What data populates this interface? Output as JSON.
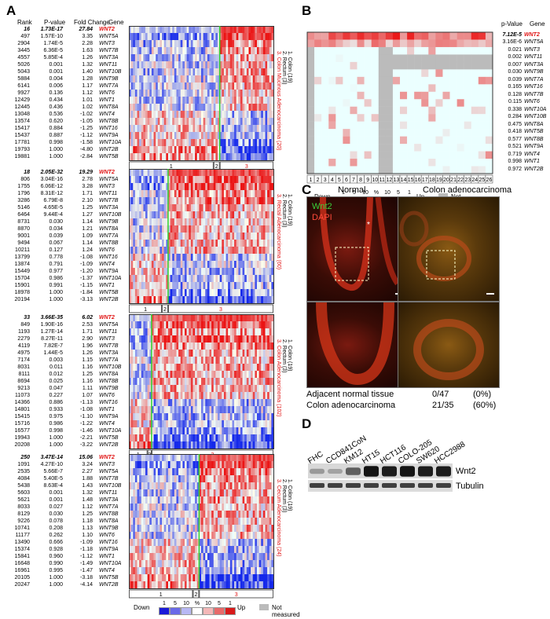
{
  "panels": {
    "A": "A",
    "B": "B",
    "C": "C",
    "D": "D"
  },
  "panelA": {
    "headers": {
      "rank": "Rank",
      "pvalue": "P-value",
      "fold": "Fold Change",
      "gene": "Gene"
    },
    "blocks": [
      {
        "rows": [
          [
            "16",
            "1.73E-17",
            "27.84",
            "WNT2"
          ],
          [
            "497",
            "1.57E-10",
            "3.35",
            "WNT5A"
          ],
          [
            "2904",
            "1.74E-5",
            "2.28",
            "WNT3"
          ],
          [
            "3445",
            "6.36E-5",
            "1.63",
            "WNT7B"
          ],
          [
            "4557",
            "5.85E-4",
            "1.26",
            "WNT3A"
          ],
          [
            "5026",
            "0.001",
            "1.32",
            "WNT11"
          ],
          [
            "5043",
            "0.001",
            "1.40",
            "WNT10B"
          ],
          [
            "5884",
            "0.004",
            "1.28",
            "WNT9B"
          ],
          [
            "6141",
            "0.006",
            "1.17",
            "WNT7A"
          ],
          [
            "9927",
            "0.136",
            "1.12",
            "WNT6"
          ],
          [
            "12429",
            "0.434",
            "1.01",
            "WNT1"
          ],
          [
            "12445",
            "0.436",
            "1.02",
            "WNT8A"
          ],
          [
            "13048",
            "0.536",
            "-1.02",
            "WNT4"
          ],
          [
            "13574",
            "0.620",
            "-1.05",
            "WNT8B"
          ],
          [
            "15417",
            "0.884",
            "-1.25",
            "WNT16"
          ],
          [
            "15437",
            "0.887",
            "-1.12",
            "WNT9A"
          ],
          [
            "17781",
            "0.998",
            "-1.58",
            "WNT10A"
          ],
          [
            "19793",
            "1.000",
            "-4.80",
            "WNT2B"
          ],
          [
            "19881",
            "1.000",
            "-2.84",
            "WNT5B"
          ]
        ],
        "legend": [
          "1. Colon (19)",
          "2. Rectum (3)",
          "3. Colon Mucinous Adenocarcinoma (20)"
        ],
        "groups": [
          "1",
          "2",
          "3"
        ],
        "split1": 0.58,
        "split2": 0.63
      },
      {
        "rows": [
          [
            "18",
            "2.05E-32",
            "19.29",
            "WNT2"
          ],
          [
            "806",
            "3.04E-16",
            "2.78",
            "WNT5A"
          ],
          [
            "1755",
            "6.06E-12",
            "3.28",
            "WNT3"
          ],
          [
            "1796",
            "8.31E-12",
            "1.71",
            "WNT11"
          ],
          [
            "3286",
            "6.79E-8",
            "2.10",
            "WNT7B"
          ],
          [
            "5146",
            "4.65E-5",
            "1.25",
            "WNT3A"
          ],
          [
            "6464",
            "9.44E-4",
            "1.27",
            "WNT10B"
          ],
          [
            "8731",
            "0.030",
            "1.14",
            "WNT9B"
          ],
          [
            "8870",
            "0.034",
            "1.21",
            "WNT8A"
          ],
          [
            "9001",
            "0.039",
            "1.09",
            "WNT7A"
          ],
          [
            "9494",
            "0.067",
            "1.14",
            "WNT8B"
          ],
          [
            "10211",
            "0.127",
            "1.24",
            "WNT6"
          ],
          [
            "13799",
            "0.778",
            "-1.08",
            "WNT16"
          ],
          [
            "13874",
            "0.791",
            "-1.09",
            "WNT4"
          ],
          [
            "15449",
            "0.977",
            "-1.20",
            "WNT9A"
          ],
          [
            "15704",
            "0.986",
            "-1.37",
            "WNT10A"
          ],
          [
            "15901",
            "0.991",
            "-1.15",
            "WNT1"
          ],
          [
            "18978",
            "1.000",
            "-1.84",
            "WNT5B"
          ],
          [
            "20194",
            "1.000",
            "-3.13",
            "WNT2B"
          ]
        ],
        "legend": [
          "1. Colon (19)",
          "2. Rectum (3)",
          "3. Rectal Adenocarcinoma (60)"
        ],
        "groups": [
          "1",
          "2",
          "3"
        ],
        "split1": 0.23,
        "split2": 0.265
      },
      {
        "rows": [
          [
            "33",
            "3.66E-35",
            "6.02",
            "WNT2"
          ],
          [
            "849",
            "1.90E-16",
            "2.53",
            "WNT5A"
          ],
          [
            "1193",
            "1.27E-14",
            "1.71",
            "WNT11"
          ],
          [
            "2279",
            "8.27E-11",
            "2.90",
            "WNT3"
          ],
          [
            "4119",
            "7.82E-7",
            "1.96",
            "WNT7B"
          ],
          [
            "4975",
            "1.44E-5",
            "1.26",
            "WNT3A"
          ],
          [
            "7174",
            "0.003",
            "1.15",
            "WNT7A"
          ],
          [
            "8031",
            "0.011",
            "1.16",
            "WNT10B"
          ],
          [
            "8111",
            "0.012",
            "1.25",
            "WNT8A"
          ],
          [
            "8694",
            "0.025",
            "1.16",
            "WNT8B"
          ],
          [
            "9213",
            "0.047",
            "1.11",
            "WNT9B"
          ],
          [
            "11073",
            "0.227",
            "1.07",
            "WNT6"
          ],
          [
            "14366",
            "0.886",
            "-1.13",
            "WNT16"
          ],
          [
            "14801",
            "0.933",
            "-1.08",
            "WNT1"
          ],
          [
            "15415",
            "0.975",
            "-1.10",
            "WNT9A"
          ],
          [
            "15716",
            "0.986",
            "-1.22",
            "WNT4"
          ],
          [
            "16577",
            "0.998",
            "-1.46",
            "WNT10A"
          ],
          [
            "19943",
            "1.000",
            "-2.21",
            "WNT5B"
          ],
          [
            "20208",
            "1.000",
            "-3.22",
            "WNT2B"
          ]
        ],
        "legend": [
          "1. Colon (19)",
          "2. Rectum (3)",
          "3. Colon Adenocarcinoma (102)"
        ],
        "groups": [
          "1",
          "2",
          "3"
        ],
        "split1": 0.13,
        "split2": 0.15
      },
      {
        "rows": [
          [
            "250",
            "3.47E-14",
            "15.06",
            "WNT2"
          ],
          [
            "1091",
            "4.27E-10",
            "3.24",
            "WNT3"
          ],
          [
            "2535",
            "5.66E-7",
            "2.27",
            "WNT5A"
          ],
          [
            "4084",
            "5.40E-5",
            "1.88",
            "WNT7B"
          ],
          [
            "5438",
            "8.63E-4",
            "1.43",
            "WNT10B"
          ],
          [
            "5603",
            "0.001",
            "1.32",
            "WNT11"
          ],
          [
            "5621",
            "0.001",
            "1.48",
            "WNT3A"
          ],
          [
            "8033",
            "0.027",
            "1.12",
            "WNT7A"
          ],
          [
            "8129",
            "0.030",
            "1.25",
            "WNT8B"
          ],
          [
            "9226",
            "0.078",
            "1.18",
            "WNT8A"
          ],
          [
            "10741",
            "0.208",
            "1.13",
            "WNT9B"
          ],
          [
            "11177",
            "0.262",
            "1.10",
            "WNT6"
          ],
          [
            "13490",
            "0.666",
            "-1.09",
            "WNT16"
          ],
          [
            "15374",
            "0.928",
            "-1.18",
            "WNT9A"
          ],
          [
            "15841",
            "0.960",
            "-1.12",
            "WNT1"
          ],
          [
            "16648",
            "0.990",
            "-1.49",
            "WNT10A"
          ],
          [
            "16961",
            "0.995",
            "-1.47",
            "WNT4"
          ],
          [
            "20105",
            "1.000",
            "-3.18",
            "WNT5B"
          ],
          [
            "20247",
            "1.000",
            "-4.14",
            "WNT2B"
          ]
        ],
        "legend": [
          "1. Colon (19)",
          "2. Rectum (3)",
          "3. Cecum Adenocarcinoma (24)"
        ],
        "groups": [
          "1",
          "2",
          "3"
        ],
        "split1": 0.44,
        "split2": 0.48
      }
    ],
    "colorbar": {
      "down": "Down",
      "up": "Up",
      "ticks": [
        "1",
        "5",
        "10",
        "%",
        "10",
        "5",
        "1"
      ],
      "not_measured": "Not measured"
    }
  },
  "panelB": {
    "header_pvalue": "p-Value",
    "header_gene": "Gene",
    "rows": [
      [
        "7.12E-5",
        "WNT2"
      ],
      [
        "3.16E-6",
        "WNT5A"
      ],
      [
        "0.021",
        "WNT3"
      ],
      [
        "0.002",
        "WNT11"
      ],
      [
        "0.007",
        "WNT3A"
      ],
      [
        "0.030",
        "WNT9B"
      ],
      [
        "0.039",
        "WNT7A"
      ],
      [
        "0.165",
        "WNT16"
      ],
      [
        "0.128",
        "WNT7B"
      ],
      [
        "0.115",
        "WNT6"
      ],
      [
        "0.338",
        "WNT10A"
      ],
      [
        "0.284",
        "WNT10B"
      ],
      [
        "0.475",
        "WNT8A"
      ],
      [
        "0.418",
        "WNT5B"
      ],
      [
        "0.577",
        "WNT8B"
      ],
      [
        "0.521",
        "WNT9A"
      ],
      [
        "0.719",
        "WNT4"
      ],
      [
        "0.998",
        "WNT1"
      ],
      [
        "0.972",
        "WNT2B"
      ]
    ],
    "columns": [
      "1",
      "2",
      "3",
      "4",
      "5",
      "6",
      "7",
      "8",
      "9",
      "10",
      "11",
      "12",
      "13",
      "14",
      "15",
      "16",
      "17",
      "18",
      "19",
      "20",
      "21",
      "22",
      "23",
      "24",
      "25",
      "26"
    ],
    "colorbar": {
      "down": "Down",
      "up": "Up",
      "ticks": [
        "1",
        "5",
        "10",
        "%",
        "10",
        "5",
        "1"
      ],
      "not_measured": "Not measured"
    }
  },
  "panelC": {
    "title_normal": "Normal",
    "title_cancer": "Colon adenocarcinoma",
    "stain_wnt2": "Wnt2",
    "stain_dapi": "DAPI",
    "asterisk": "*",
    "stats": [
      {
        "label": "Adjacent normal tissue",
        "count": "0/47",
        "pct": "(0%)"
      },
      {
        "label": "Colon adenocarcinoma",
        "count": "21/35",
        "pct": "(60%)"
      }
    ]
  },
  "panelD": {
    "cell_lines": [
      "FHC",
      "CCD841CoN",
      "KM12",
      "HT15",
      "HCT116",
      "COLO-205",
      "SW620",
      "HCC2988"
    ],
    "band_wnt2": "Wnt2",
    "band_tubulin": "Tubulin",
    "wnt2_intensity": [
      0.25,
      0.2,
      0.55,
      0.95,
      0.9,
      0.95,
      0.9,
      0.9
    ],
    "tubulin_intensity": [
      0.8,
      0.8,
      0.8,
      0.8,
      0.8,
      0.8,
      0.8,
      0.8
    ]
  }
}
